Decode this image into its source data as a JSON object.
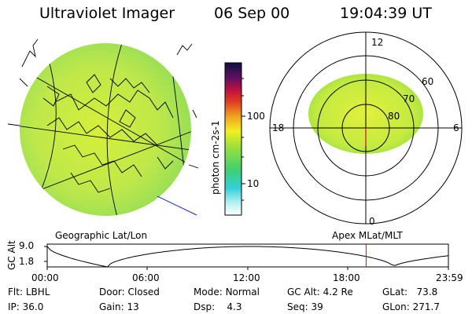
{
  "header": {
    "title": "Ultraviolet Imager",
    "date": "06 Sep 00",
    "time": "19:04:39 UT"
  },
  "colorbar": {
    "label": "photon cm-2s-1",
    "ticks": [
      "100",
      "10"
    ]
  },
  "polar_plot": {
    "mlt_labels": [
      "12",
      "18",
      "6",
      "0"
    ],
    "lat_labels": [
      "60",
      "70",
      "80"
    ]
  },
  "captions": {
    "left": "Geographic Lat/Lon",
    "right": "Apex MLat/MLT"
  },
  "altitude_plot": {
    "ylabel": "GC Alt",
    "y_ticks": [
      "9.0",
      "1.8"
    ],
    "x_ticks": [
      "00:00",
      "06:00",
      "12:00",
      "18:00",
      "23:59"
    ],
    "current_time_hours": 19.08
  },
  "info": {
    "flt_label": "Flt:",
    "flt_value": "LBHL",
    "ip_label": "IP:",
    "ip_value": "36.0",
    "door_label": "Door:",
    "door_value": "Closed",
    "gain_label": "Gain:",
    "gain_value": "13",
    "mode_label": "Mode:",
    "mode_value": "Normal",
    "dsp_label": "Dsp:",
    "dsp_value": "4.3",
    "gcalt_label": "GC Alt:",
    "gcalt_value": "4.2 Re",
    "seq_label": "Seq:",
    "seq_value": "39",
    "glat_label": "GLat:",
    "glat_value": "73.8",
    "glon_label": "GLon:",
    "glon_value": "271.7"
  },
  "colors": {
    "background": "#ffffff",
    "image_fill": "#c8ec3c",
    "marker": "#d01010",
    "projection_line": "#2030c0"
  }
}
